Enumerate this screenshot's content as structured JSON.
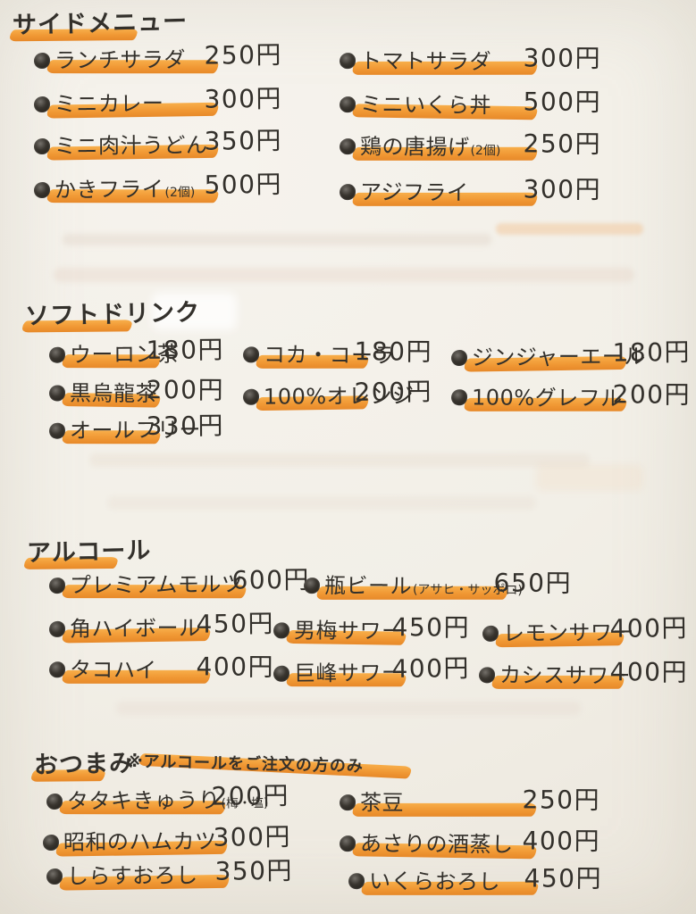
{
  "page": {
    "background_color": "#f2efe7",
    "ink_color": "#33302b",
    "highlighter_color": "#f09126"
  },
  "sections": [
    {
      "title": "サイドメニュー",
      "note": "",
      "items": [
        {
          "name": "ランチサラダ",
          "suffix": "",
          "price": "250円"
        },
        {
          "name": "トマトサラダ",
          "suffix": "",
          "price": "300円"
        },
        {
          "name": "ミニカレー",
          "suffix": "",
          "price": "300円"
        },
        {
          "name": "ミニいくら丼",
          "suffix": "",
          "price": "500円"
        },
        {
          "name": "ミニ肉汁うどん",
          "suffix": "",
          "price": "350円"
        },
        {
          "name": "鶏の唐揚げ",
          "suffix": "(2個)",
          "price": "250円"
        },
        {
          "name": "かきフライ",
          "suffix": "(2個)",
          "price": "500円"
        },
        {
          "name": "アジフライ",
          "suffix": "",
          "price": "300円"
        }
      ]
    },
    {
      "title": "ソフトドリンク",
      "note": "",
      "items": [
        {
          "name": "ウーロン茶",
          "suffix": "",
          "price": "180円"
        },
        {
          "name": "コカ・コーラ",
          "suffix": "",
          "price": "180円"
        },
        {
          "name": "ジンジャーエール",
          "suffix": "",
          "price": "180円"
        },
        {
          "name": "黒烏龍茶",
          "suffix": "",
          "price": "200円"
        },
        {
          "name": "100%オレンジ",
          "suffix": "",
          "price": "200円"
        },
        {
          "name": "100%グレフル",
          "suffix": "",
          "price": "200円"
        },
        {
          "name": "オールフリー",
          "suffix": "",
          "price": "330円"
        }
      ]
    },
    {
      "title": "アルコール",
      "note": "",
      "items": [
        {
          "name": "プレミアムモルツ",
          "suffix": "",
          "price": "600円"
        },
        {
          "name": "瓶ビール",
          "suffix": "(アサヒ・サッポロ)",
          "price": "650円"
        },
        {
          "name": "角ハイボール",
          "suffix": "",
          "price": "450円"
        },
        {
          "name": "男梅サワー",
          "suffix": "",
          "price": "450円"
        },
        {
          "name": "レモンサワー",
          "suffix": "",
          "price": "400円"
        },
        {
          "name": "タコハイ",
          "suffix": "",
          "price": "400円"
        },
        {
          "name": "巨峰サワー",
          "suffix": "",
          "price": "400円"
        },
        {
          "name": "カシスサワー",
          "suffix": "",
          "price": "400円"
        }
      ]
    },
    {
      "title": "おつまみ",
      "note": "※アルコールをご注文の方のみ",
      "items": [
        {
          "name": "タタキきゅうり",
          "suffix": "(梅・塩)",
          "price": "200円"
        },
        {
          "name": "茶豆",
          "suffix": "",
          "price": "250円"
        },
        {
          "name": "昭和のハムカツ",
          "suffix": "",
          "price": "300円"
        },
        {
          "name": "あさりの酒蒸し",
          "suffix": "",
          "price": "400円"
        },
        {
          "name": "しらすおろし",
          "suffix": "",
          "price": "350円"
        },
        {
          "name": "いくらおろし",
          "suffix": "",
          "price": "450円"
        }
      ]
    }
  ]
}
